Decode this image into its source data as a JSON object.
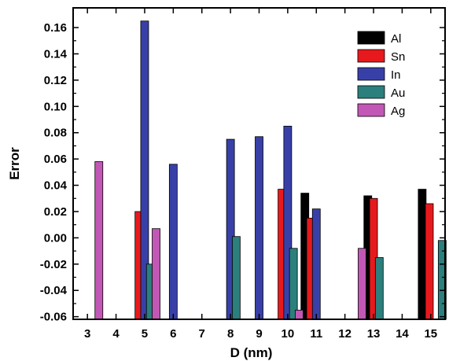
{
  "chart_data": {
    "type": "bar",
    "xlabel": "D (nm)",
    "ylabel": "Error",
    "xlim": [
      2.5,
      15.5
    ],
    "ylim": [
      -0.062,
      0.175
    ],
    "x_ticks": [
      3,
      4,
      5,
      6,
      7,
      8,
      9,
      10,
      11,
      12,
      13,
      14,
      15
    ],
    "y_ticks": [
      -0.06,
      -0.04,
      -0.02,
      0.0,
      0.02,
      0.04,
      0.06,
      0.08,
      0.1,
      0.12,
      0.14,
      0.16
    ],
    "y_tick_labels": [
      "-0.06",
      "-0.04",
      "-0.02",
      "0.00",
      "0.02",
      "0.04",
      "0.06",
      "0.08",
      "0.10",
      "0.12",
      "0.14",
      "0.16"
    ],
    "legend_position": "top-right",
    "series": [
      {
        "name": "Al",
        "color": "#000000",
        "points": [
          {
            "x": 10.6,
            "y": 0.034
          },
          {
            "x": 12.8,
            "y": 0.032
          },
          {
            "x": 14.7,
            "y": 0.037
          }
        ]
      },
      {
        "name": "Sn",
        "color": "#e8191c",
        "points": [
          {
            "x": 4.8,
            "y": 0.02
          },
          {
            "x": 9.8,
            "y": 0.037
          },
          {
            "x": 10.8,
            "y": 0.015
          },
          {
            "x": 13.0,
            "y": 0.03
          },
          {
            "x": 14.95,
            "y": 0.026
          }
        ]
      },
      {
        "name": "In",
        "color": "#3840a8",
        "points": [
          {
            "x": 5.0,
            "y": 0.165
          },
          {
            "x": 6.0,
            "y": 0.056
          },
          {
            "x": 8.0,
            "y": 0.075
          },
          {
            "x": 9.0,
            "y": 0.077
          },
          {
            "x": 10.0,
            "y": 0.085
          },
          {
            "x": 11.0,
            "y": 0.022
          }
        ]
      },
      {
        "name": "Au",
        "color": "#2b7f7c",
        "points": [
          {
            "x": 5.2,
            "y": -0.02
          },
          {
            "x": 8.2,
            "y": 0.001
          },
          {
            "x": 10.2,
            "y": -0.008
          },
          {
            "x": 13.2,
            "y": -0.015
          },
          {
            "x": 15.4,
            "y": -0.002
          }
        ]
      },
      {
        "name": "Ag",
        "color": "#c257b5",
        "points": [
          {
            "x": 3.4,
            "y": 0.058
          },
          {
            "x": 5.4,
            "y": 0.007
          },
          {
            "x": 10.4,
            "y": -0.055
          },
          {
            "x": 12.6,
            "y": -0.008
          }
        ]
      }
    ]
  }
}
